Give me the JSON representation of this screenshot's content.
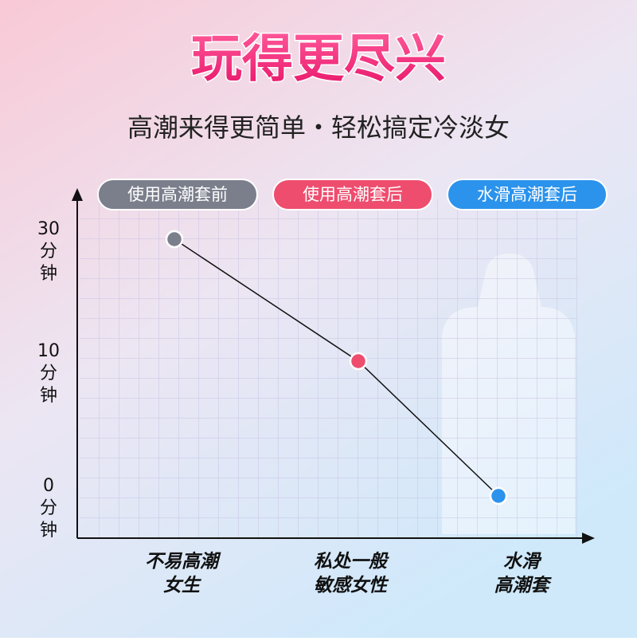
{
  "chart_data": {
    "type": "line",
    "title": "玩得更尽兴",
    "subtitle": "高潮来得更简单・轻松搞定冷淡女",
    "legend": [
      "使用高潮套前",
      "使用高潮套后",
      "水滑高潮套后"
    ],
    "categories": [
      [
        "不易高潮",
        "女生"
      ],
      [
        "私处一般",
        "敏感女性"
      ],
      [
        "水滑",
        "高潮套"
      ]
    ],
    "values": [
      30,
      10,
      0
    ],
    "point_colors": [
      "#7b7f8c",
      "#ee4d6e",
      "#2b93ec"
    ],
    "line_color": "#111111",
    "yticks": [
      {
        "value": 30,
        "label": [
          "30",
          "分",
          "钟"
        ]
      },
      {
        "value": 10,
        "label": [
          "10",
          "分",
          "钟"
        ]
      },
      {
        "value": 0,
        "label": [
          "0",
          "分",
          "钟"
        ]
      }
    ],
    "grid": true
  }
}
